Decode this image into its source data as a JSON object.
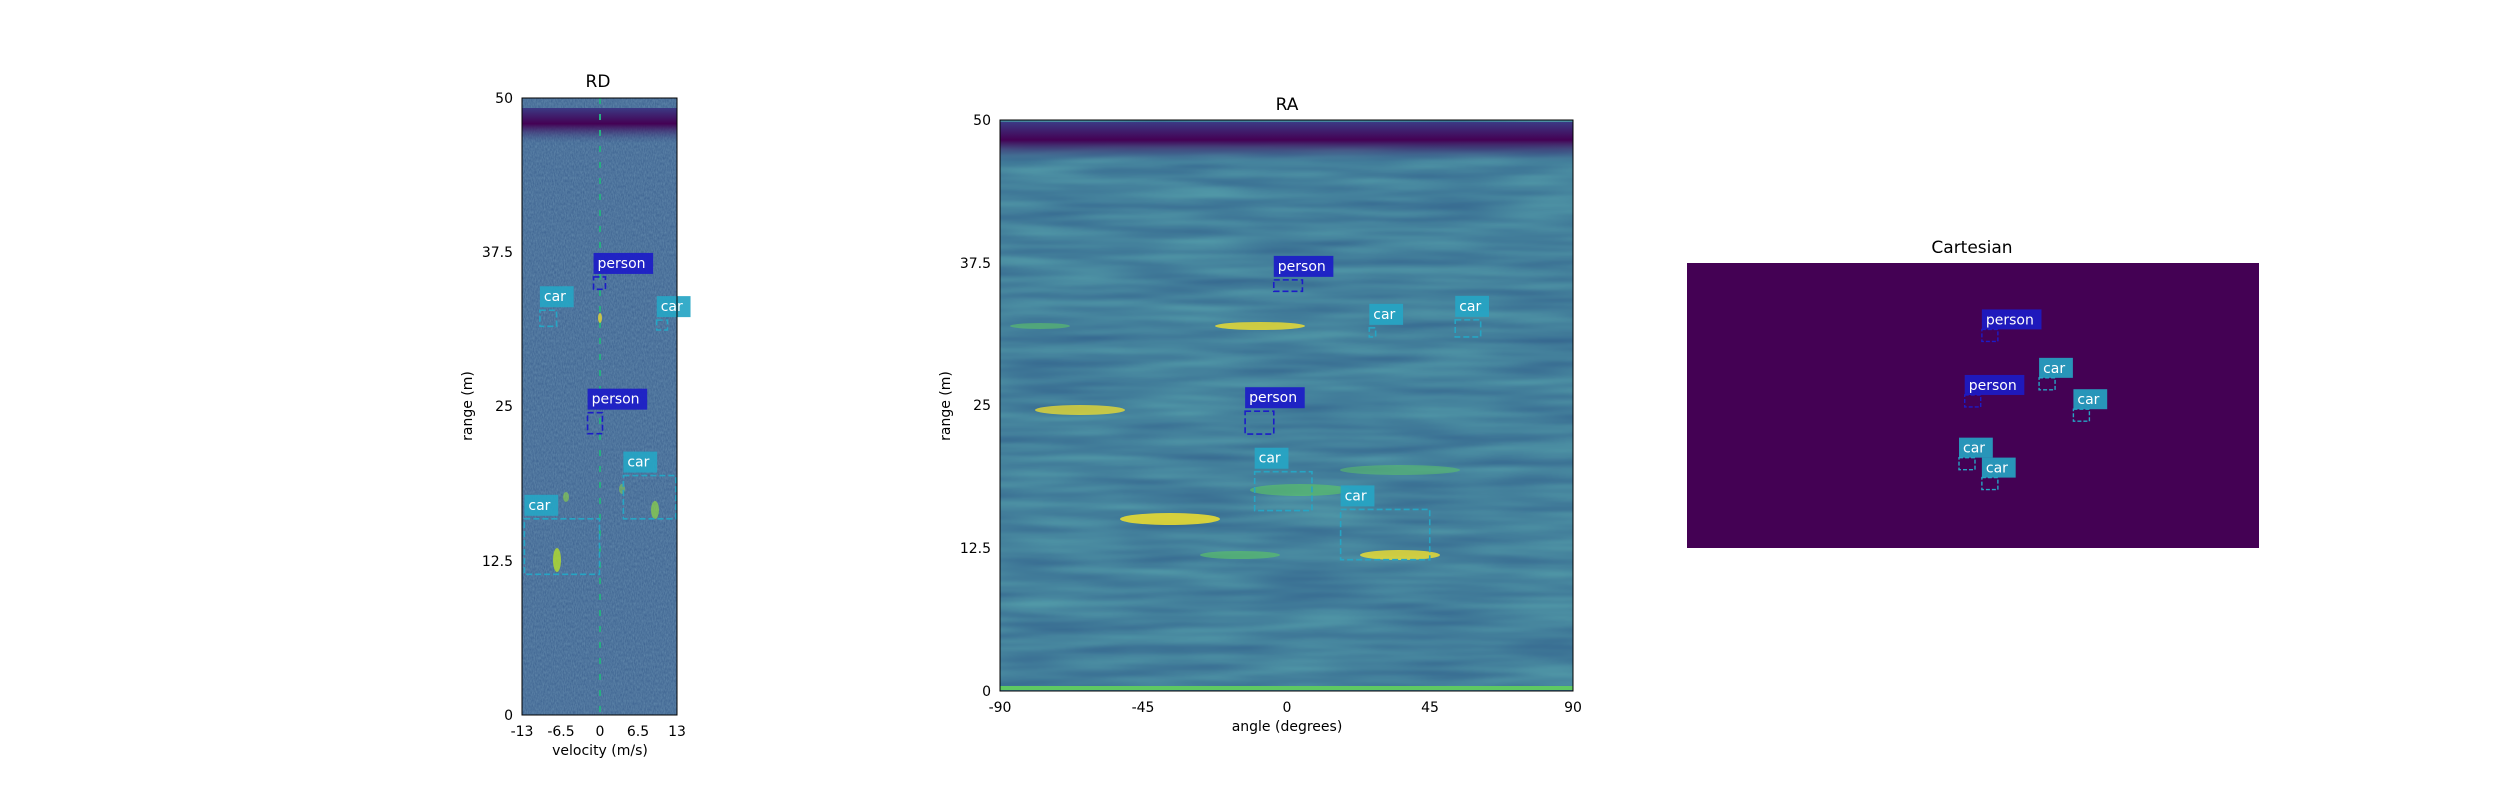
{
  "colors": {
    "heat_low": "#440154",
    "heat_mid": "#3b528b",
    "heat_bg": "#31688e",
    "heat_high": "#fde725",
    "cart_bg": "#440154",
    "person": "#1c1cc8",
    "car": "#26a5c4"
  },
  "chart_data": [
    {
      "type": "heatmap",
      "title": "RD",
      "xlabel": "velocity (m/s)",
      "ylabel": "range (m)",
      "xlim": [
        -13,
        13
      ],
      "ylim": [
        0,
        50
      ],
      "xticks": [
        "-13",
        "-6.5",
        "0",
        "6.5",
        "13"
      ],
      "yticks": [
        "0",
        "12.5",
        "25",
        "37.5",
        "50"
      ],
      "detections": [
        {
          "label": "person",
          "x": [
            -2.0,
            0.5
          ],
          "y": [
            22.8,
            24.5
          ]
        },
        {
          "label": "person",
          "x": [
            -1.0,
            1.0
          ],
          "y": [
            34.5,
            35.5
          ]
        },
        {
          "label": "car",
          "x": [
            -10.0,
            -7.2
          ],
          "y": [
            31.5,
            32.8
          ]
        },
        {
          "label": "car",
          "x": [
            9.6,
            11.4
          ],
          "y": [
            31.2,
            32.0
          ]
        },
        {
          "label": "car",
          "x": [
            4.0,
            12.8
          ],
          "y": [
            15.9,
            19.4
          ]
        },
        {
          "label": "car",
          "x": [
            -12.6,
            0.0
          ],
          "y": [
            11.4,
            15.9
          ]
        }
      ]
    },
    {
      "type": "heatmap",
      "title": "RA",
      "xlabel": "angle (degrees)",
      "ylabel": "range (m)",
      "xlim": [
        -90,
        90
      ],
      "ylim": [
        0,
        50
      ],
      "xticks": [
        "-90",
        "-45",
        "0",
        "45",
        "90"
      ],
      "yticks": [
        "0",
        "12.5",
        "25",
        "37.5",
        "50"
      ],
      "detections": [
        {
          "label": "person",
          "x": [
            -4.0,
            5.0
          ],
          "y": [
            35.0,
            36.0
          ]
        },
        {
          "label": "person",
          "x": [
            -13.0,
            -4.0
          ],
          "y": [
            22.5,
            24.5
          ]
        },
        {
          "label": "car",
          "x": [
            26.0,
            28.0
          ],
          "y": [
            31.0,
            31.8
          ]
        },
        {
          "label": "car",
          "x": [
            53.0,
            61.0
          ],
          "y": [
            31.0,
            32.5
          ]
        },
        {
          "label": "car",
          "x": [
            -10.0,
            8.0
          ],
          "y": [
            15.8,
            19.2
          ]
        },
        {
          "label": "car",
          "x": [
            17.0,
            45.0
          ],
          "y": [
            11.5,
            15.9
          ]
        }
      ]
    },
    {
      "type": "scatter",
      "title": "Cartesian",
      "detections": [
        {
          "label": "person",
          "x": 0.54,
          "y": 0.76
        },
        {
          "label": "person",
          "x": 0.51,
          "y": 0.53
        },
        {
          "label": "car",
          "x": 0.64,
          "y": 0.59
        },
        {
          "label": "car",
          "x": 0.7,
          "y": 0.48
        },
        {
          "label": "car",
          "x": 0.5,
          "y": 0.31
        },
        {
          "label": "car",
          "x": 0.54,
          "y": 0.24
        }
      ]
    }
  ]
}
